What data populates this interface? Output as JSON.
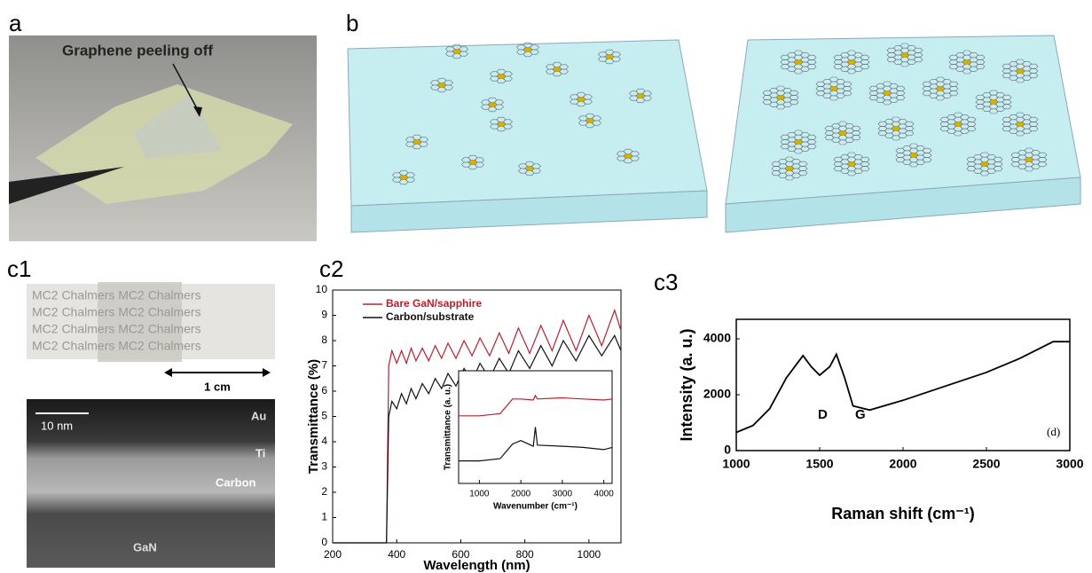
{
  "panels": {
    "a": {
      "label": "a",
      "annotation": "Graphene peeling off"
    },
    "b": {
      "label": "b"
    },
    "c1": {
      "label": "c1",
      "sample_text": "MC2 Chalmers MC2 Chalmers",
      "scale_label": "1 cm",
      "scale_bar": "10 nm",
      "layers": [
        "Au",
        "Ti",
        "Carbon",
        "GaN"
      ]
    },
    "c2": {
      "label": "c2"
    },
    "c3": {
      "label": "c3",
      "annotations": [
        "D",
        "G",
        "(d)"
      ]
    }
  },
  "chart_data": [
    {
      "type": "line",
      "xlabel": "Wavelength (nm)",
      "ylabel": "Transmittance (%)",
      "x": [
        200,
        360,
        368,
        375,
        385,
        400,
        415,
        430,
        445,
        460,
        480,
        500,
        520,
        540,
        560,
        585,
        610,
        635,
        660,
        690,
        720,
        750,
        780,
        815,
        850,
        885,
        920,
        960,
        1000,
        1040,
        1080,
        1100
      ],
      "series": [
        {
          "name": "Bare GaN/sapphire",
          "color": "#b5202e",
          "values": [
            0,
            0,
            0,
            7.0,
            7.6,
            7.1,
            7.6,
            7.1,
            7.7,
            7.2,
            7.7,
            7.2,
            7.8,
            7.3,
            7.9,
            7.3,
            8.0,
            7.4,
            8.1,
            7.4,
            8.3,
            7.5,
            8.5,
            7.5,
            8.6,
            7.6,
            8.8,
            7.6,
            9.0,
            7.8,
            9.2,
            8.4
          ]
        },
        {
          "name": "Carbon/substrate",
          "color": "#111111",
          "values": [
            0,
            0,
            0,
            5.0,
            5.6,
            5.3,
            5.9,
            5.5,
            6.1,
            5.7,
            6.3,
            5.9,
            6.5,
            6.1,
            6.7,
            6.2,
            6.9,
            6.4,
            7.1,
            6.5,
            7.3,
            6.7,
            7.6,
            6.9,
            7.8,
            7.0,
            8.0,
            7.2,
            8.2,
            7.4,
            8.2,
            7.6
          ]
        }
      ],
      "xlim": [
        200,
        1100
      ],
      "ylim": [
        0,
        10
      ],
      "xticks": [
        200,
        400,
        600,
        800,
        1000
      ],
      "yticks": [
        0,
        1,
        2,
        3,
        4,
        5,
        6,
        7,
        8,
        9,
        10
      ]
    },
    {
      "type": "line",
      "xlabel": "Wavenumber (cm⁻¹)",
      "ylabel": "Transmittance (a. u.)",
      "x": [
        500,
        1000,
        1500,
        1800,
        2000,
        2300,
        2350,
        2400,
        3000,
        3500,
        4000,
        4200
      ],
      "series": [
        {
          "color": "#b5202e",
          "values": [
            0.6,
            0.6,
            0.62,
            0.75,
            0.75,
            0.74,
            0.78,
            0.75,
            0.76,
            0.75,
            0.74,
            0.75
          ]
        },
        {
          "color": "#111111",
          "values": [
            0.2,
            0.2,
            0.22,
            0.35,
            0.38,
            0.33,
            0.5,
            0.34,
            0.33,
            0.32,
            0.3,
            0.32
          ]
        }
      ],
      "xlim": [
        500,
        4200
      ],
      "ylim": [
        0,
        1
      ],
      "xticks": [
        1000,
        2000,
        3000,
        4000
      ]
    },
    {
      "type": "line",
      "xlabel": "Raman shift (cm⁻¹)",
      "ylabel": "Intensity (a. u.)",
      "x": [
        1000,
        1100,
        1200,
        1300,
        1400,
        1450,
        1500,
        1560,
        1600,
        1650,
        1700,
        1800,
        2000,
        2200,
        2500,
        2700,
        2900,
        3000
      ],
      "series": [
        {
          "color": "#000000",
          "values": [
            650,
            900,
            1500,
            2600,
            3400,
            3000,
            2700,
            3000,
            3450,
            2600,
            1600,
            1450,
            1800,
            2200,
            2800,
            3300,
            3900,
            3900
          ]
        }
      ],
      "xlim": [
        1000,
        3000
      ],
      "ylim": [
        0,
        4700
      ],
      "xticks": [
        1000,
        1500,
        2000,
        2500,
        3000
      ],
      "yticks": [
        0,
        2000,
        4000
      ]
    }
  ]
}
